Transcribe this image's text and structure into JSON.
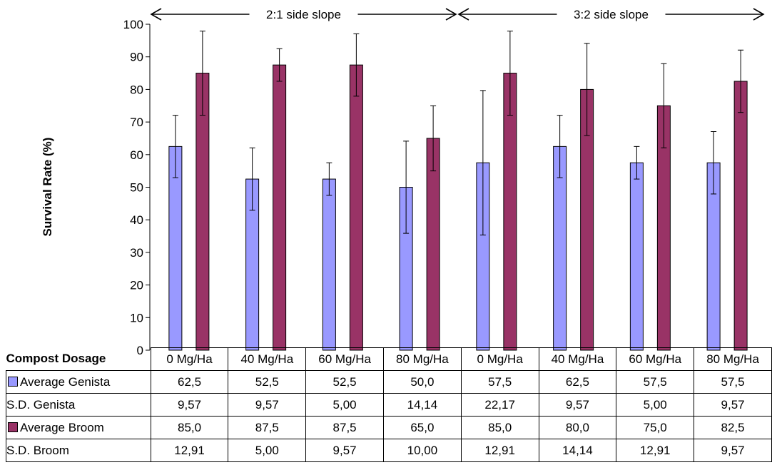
{
  "chart_data": {
    "type": "bar",
    "ylabel": "Survival Rate (%)",
    "ylim": [
      0,
      100
    ],
    "ytick_step": 10,
    "yticks": [
      "0",
      "10",
      "20",
      "30",
      "40",
      "50",
      "60",
      "70",
      "80",
      "90",
      "100"
    ],
    "categories": [
      "0 Mg/Ha",
      "40 Mg/Ha",
      "60 Mg/Ha",
      "80 Mg/Ha",
      "0 Mg/Ha",
      "40 Mg/Ha",
      "60 Mg/Ha",
      "80 Mg/Ha"
    ],
    "groups": [
      {
        "label": "2:1 side slope",
        "span": [
          0,
          3
        ]
      },
      {
        "label": "3:2 side slope",
        "span": [
          4,
          7
        ]
      }
    ],
    "series": [
      {
        "name": "Average Genista",
        "color": "#9999ff",
        "values": [
          62.5,
          52.5,
          52.5,
          50.0,
          57.5,
          62.5,
          57.5,
          57.5
        ],
        "sd": [
          9.57,
          9.57,
          5.0,
          14.14,
          22.17,
          9.57,
          5.0,
          9.57
        ]
      },
      {
        "name": "Average Broom",
        "color": "#993366",
        "values": [
          85.0,
          87.5,
          87.5,
          65.0,
          85.0,
          80.0,
          75.0,
          82.5
        ],
        "sd": [
          12.91,
          5.0,
          9.57,
          10.0,
          12.91,
          14.14,
          12.91,
          9.57
        ]
      }
    ],
    "grid": false,
    "legend": "data table"
  },
  "table": {
    "corner_label": "Compost Dosage",
    "rows": [
      {
        "label": "Average Genista",
        "swatch": "#9999ff",
        "cells": [
          "62,5",
          "52,5",
          "52,5",
          "50,0",
          "57,5",
          "62,5",
          "57,5",
          "57,5"
        ]
      },
      {
        "label": "S.D. Genista",
        "swatch": "",
        "cells": [
          "9,57",
          "9,57",
          "5,00",
          "14,14",
          "22,17",
          "9,57",
          "5,00",
          "9,57"
        ]
      },
      {
        "label": "Average Broom",
        "swatch": "#993366",
        "cells": [
          "85,0",
          "87,5",
          "87,5",
          "65,0",
          "85,0",
          "80,0",
          "75,0",
          "82,5"
        ]
      },
      {
        "label": "S.D. Broom",
        "swatch": "",
        "cells": [
          "12,91",
          "5,00",
          "9,57",
          "10,00",
          "12,91",
          "14,14",
          "12,91",
          "9,57"
        ]
      }
    ]
  }
}
